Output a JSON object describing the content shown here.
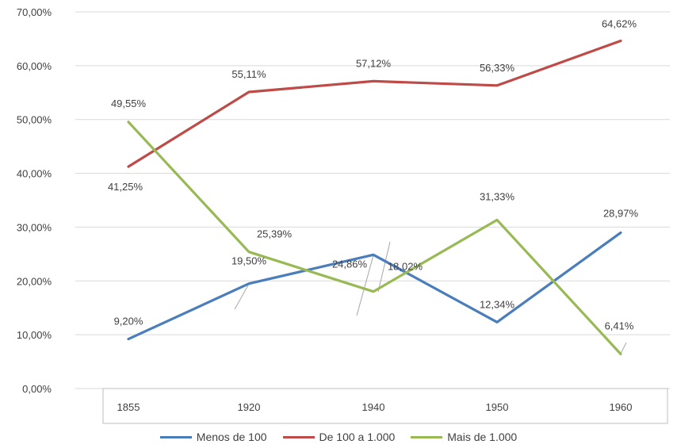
{
  "chart_data": {
    "type": "line",
    "categories": [
      "1855",
      "1920",
      "1940",
      "1950",
      "1960"
    ],
    "ylim": [
      0,
      70
    ],
    "y_ticks": [
      "0,00%",
      "10,00%",
      "20,00%",
      "30,00%",
      "40,00%",
      "50,00%",
      "60,00%",
      "70,00%"
    ],
    "grid": true,
    "legend_position": "bottom",
    "series": [
      {
        "name": "Menos de 100",
        "color": "#4A7EBB",
        "values": [
          9.2,
          19.5,
          24.86,
          12.34,
          28.97
        ],
        "labels": [
          "9,20%",
          "19,50%",
          "24,86%",
          "12,34%",
          "28,97%"
        ]
      },
      {
        "name": "De 100 a 1.000",
        "color": "#BE4B48",
        "values": [
          41.25,
          55.11,
          57.12,
          56.33,
          64.62
        ],
        "labels": [
          "41,25%",
          "55,11%",
          "57,12%",
          "56,33%",
          "64,62%"
        ]
      },
      {
        "name": "Mais de 1.000",
        "color": "#98B954",
        "values": [
          49.55,
          25.39,
          18.02,
          31.33,
          6.41
        ],
        "labels": [
          "49,55%",
          "25,39%",
          "18,02%",
          "31,33%",
          "6,41%"
        ]
      }
    ]
  }
}
